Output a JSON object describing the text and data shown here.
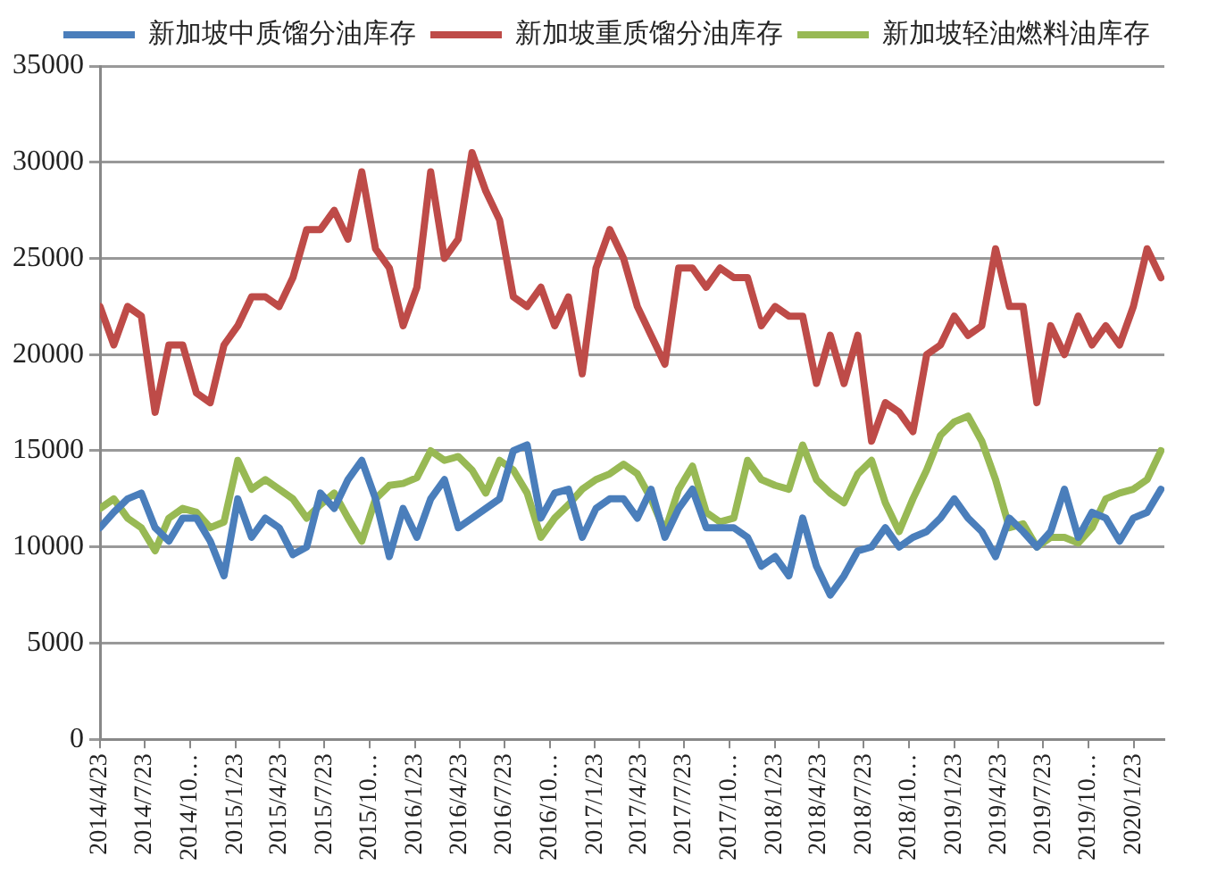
{
  "chart_data": {
    "type": "line",
    "x": [
      "2014-04-23",
      "2014-05-21",
      "2014-06-18",
      "2014-07-16",
      "2014-08-13",
      "2014-09-10",
      "2014-10-08",
      "2014-11-05",
      "2014-12-03",
      "2014-12-31",
      "2015-01-28",
      "2015-02-25",
      "2015-03-25",
      "2015-04-22",
      "2015-05-20",
      "2015-06-17",
      "2015-07-15",
      "2015-08-12",
      "2015-09-09",
      "2015-10-07",
      "2015-11-04",
      "2015-12-02",
      "2015-12-30",
      "2016-01-27",
      "2016-02-24",
      "2016-03-23",
      "2016-04-20",
      "2016-05-18",
      "2016-06-15",
      "2016-07-13",
      "2016-08-10",
      "2016-09-07",
      "2016-10-05",
      "2016-11-02",
      "2016-11-30",
      "2016-12-28",
      "2017-01-25",
      "2017-02-22",
      "2017-03-22",
      "2017-04-19",
      "2017-05-17",
      "2017-06-14",
      "2017-07-12",
      "2017-08-09",
      "2017-09-06",
      "2017-10-04",
      "2017-11-01",
      "2017-11-29",
      "2017-12-27",
      "2018-01-24",
      "2018-02-21",
      "2018-03-21",
      "2018-04-18",
      "2018-05-16",
      "2018-06-13",
      "2018-07-11",
      "2018-08-08",
      "2018-09-05",
      "2018-10-03",
      "2018-10-31",
      "2018-11-28",
      "2018-12-26",
      "2019-01-23",
      "2019-02-20",
      "2019-03-20",
      "2019-04-17",
      "2019-05-15",
      "2019-06-12",
      "2019-07-10",
      "2019-08-07",
      "2019-09-04",
      "2019-10-02",
      "2019-10-30",
      "2019-11-27",
      "2019-12-25",
      "2020-01-22",
      "2020-02-19",
      "2020-03-18"
    ],
    "series": [
      {
        "name": "新加坡中质馏分油库存",
        "color": "#4a7ebb",
        "values": [
          11000,
          11800,
          12500,
          12800,
          11000,
          10300,
          11500,
          11500,
          10300,
          8500,
          12500,
          10500,
          11500,
          11000,
          9600,
          10000,
          12800,
          12000,
          13500,
          14500,
          12500,
          9500,
          12000,
          10500,
          12500,
          13500,
          11000,
          11500,
          12000,
          12500,
          15000,
          15300,
          11500,
          12800,
          13000,
          10500,
          12000,
          12500,
          12500,
          11500,
          13000,
          10500,
          12000,
          13000,
          11000,
          11000,
          11000,
          10500,
          9000,
          9500,
          8500,
          11500,
          9000,
          7500,
          8500,
          9800,
          10000,
          11000,
          10000,
          10500,
          10800,
          11500,
          12500,
          11500,
          10800,
          9500,
          11500,
          10800,
          10000,
          10800,
          13000,
          10500,
          11800,
          11500,
          10300,
          11500,
          11800,
          13000
        ]
      },
      {
        "name": "新加坡重质馏分油库存",
        "color": "#be4b48",
        "values": [
          22500,
          20500,
          22500,
          22000,
          17000,
          20500,
          20500,
          18000,
          17500,
          20500,
          21500,
          23000,
          23000,
          22500,
          24000,
          26500,
          26500,
          27500,
          26000,
          29500,
          25500,
          24500,
          21500,
          23500,
          29500,
          25000,
          26000,
          30500,
          28500,
          27000,
          23000,
          22500,
          23500,
          21500,
          23000,
          19000,
          24500,
          26500,
          25000,
          22500,
          21000,
          19500,
          24500,
          24500,
          23500,
          24500,
          24000,
          24000,
          21500,
          22500,
          22000,
          22000,
          18500,
          21000,
          18500,
          21000,
          15500,
          17500,
          17000,
          16000,
          20000,
          20500,
          22000,
          21000,
          21500,
          25500,
          22500,
          22500,
          17500,
          21500,
          20000,
          22000,
          20500,
          21500,
          20500,
          22500,
          25500,
          24000
        ]
      },
      {
        "name": "新加坡轻油燃料油库存",
        "color": "#98b954",
        "values": [
          12000,
          12500,
          11500,
          11000,
          9800,
          11500,
          12000,
          11800,
          11000,
          11300,
          14500,
          13000,
          13500,
          13000,
          12500,
          11500,
          12200,
          12800,
          11500,
          10300,
          12500,
          13200,
          13300,
          13600,
          15000,
          14500,
          14700,
          14000,
          12800,
          14500,
          14000,
          12800,
          10500,
          11500,
          12200,
          13000,
          13500,
          13800,
          14300,
          13800,
          12500,
          10800,
          13000,
          14200,
          11800,
          11300,
          11500,
          14500,
          13500,
          13200,
          13000,
          15300,
          13500,
          12800,
          12300,
          13800,
          14500,
          12300,
          10800,
          12500,
          14000,
          15800,
          16500,
          16800,
          15500,
          13500,
          11000,
          11200,
          10000,
          10500,
          10500,
          10200,
          11000,
          12500,
          12800,
          13000,
          13500,
          15000
        ]
      }
    ],
    "xlim": [
      "2014-04-23",
      "2020-03-25"
    ],
    "xticks": [
      {
        "value": "2014-04-23",
        "label": "2014/4/23"
      },
      {
        "value": "2014-07-23",
        "label": "2014/7/23"
      },
      {
        "value": "2014-10-23",
        "label": "2014/10…"
      },
      {
        "value": "2015-01-23",
        "label": "2015/1/23"
      },
      {
        "value": "2015-04-23",
        "label": "2015/4/23"
      },
      {
        "value": "2015-07-23",
        "label": "2015/7/23"
      },
      {
        "value": "2015-10-23",
        "label": "2015/10…"
      },
      {
        "value": "2016-01-23",
        "label": "2016/1/23"
      },
      {
        "value": "2016-04-23",
        "label": "2016/4/23"
      },
      {
        "value": "2016-07-23",
        "label": "2016/7/23"
      },
      {
        "value": "2016-10-23",
        "label": "2016/10…"
      },
      {
        "value": "2017-01-23",
        "label": "2017/1/23"
      },
      {
        "value": "2017-04-23",
        "label": "2017/4/23"
      },
      {
        "value": "2017-07-23",
        "label": "2017/7/23"
      },
      {
        "value": "2017-10-23",
        "label": "2017/10…"
      },
      {
        "value": "2018-01-23",
        "label": "2018/1/23"
      },
      {
        "value": "2018-04-23",
        "label": "2018/4/23"
      },
      {
        "value": "2018-07-23",
        "label": "2018/7/23"
      },
      {
        "value": "2018-10-23",
        "label": "2018/10…"
      },
      {
        "value": "2019-01-23",
        "label": "2019/1/23"
      },
      {
        "value": "2019-04-23",
        "label": "2019/4/23"
      },
      {
        "value": "2019-07-23",
        "label": "2019/7/23"
      },
      {
        "value": "2019-10-23",
        "label": "2019/10…"
      },
      {
        "value": "2020-01-23",
        "label": "2020/1/23"
      }
    ],
    "ylim": [
      0,
      35000
    ],
    "yticks": [
      0,
      5000,
      10000,
      15000,
      20000,
      25000,
      30000,
      35000
    ],
    "grid": "y",
    "legend": "top right",
    "marker": "none",
    "line_style": "solid"
  }
}
